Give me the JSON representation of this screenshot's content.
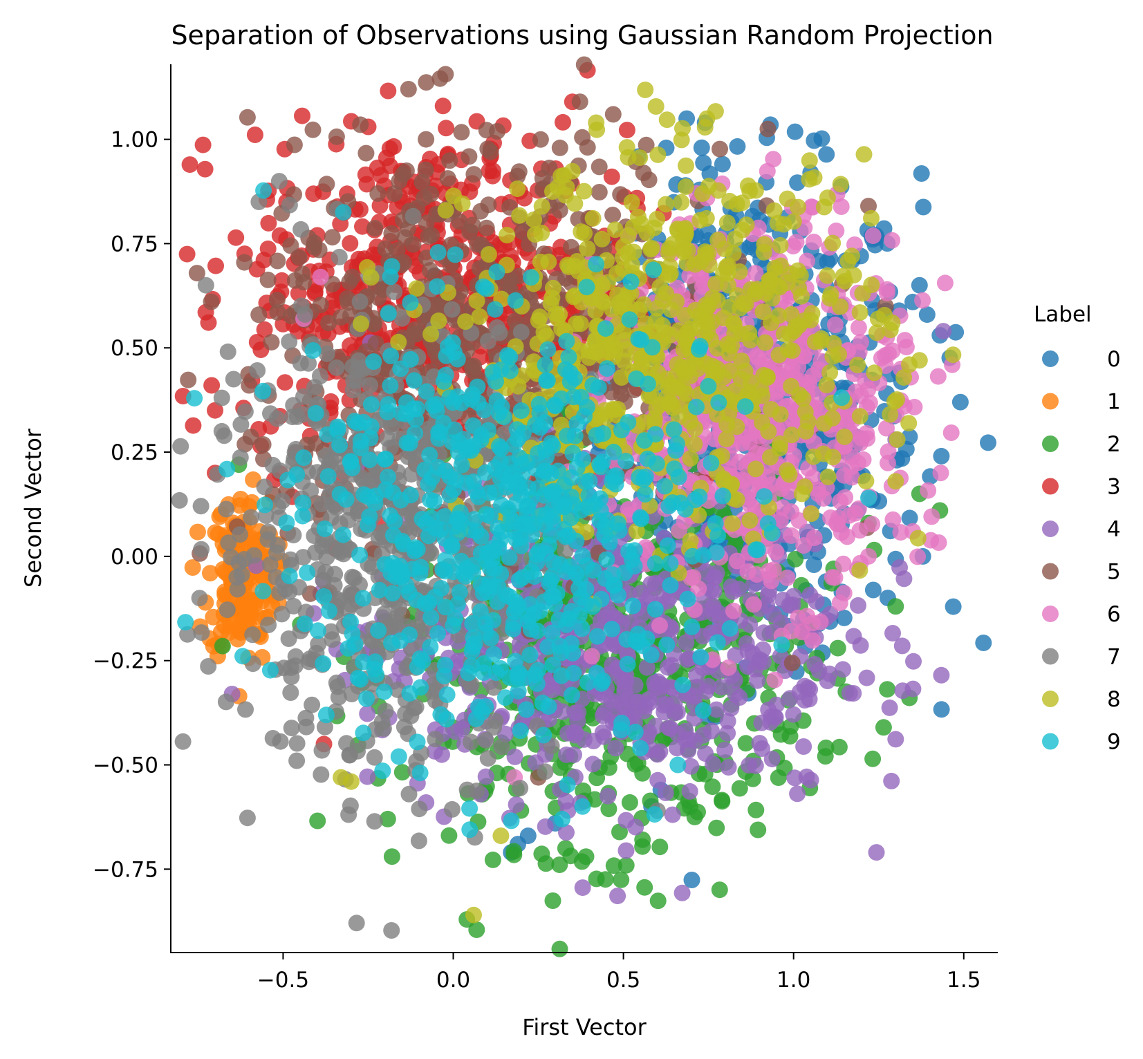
{
  "chart_data": {
    "type": "scatter",
    "title": "Separation of Observations using Gaussian Random Projection",
    "xlabel": "First Vector",
    "ylabel": "Second Vector",
    "xlim": [
      -0.83,
      1.6
    ],
    "ylim": [
      -0.95,
      1.18
    ],
    "x_ticks": [
      -0.5,
      0.0,
      0.5,
      1.0,
      1.5
    ],
    "x_tick_labels": [
      "−0.5",
      "0.0",
      "0.5",
      "1.0",
      "1.5"
    ],
    "y_ticks": [
      -0.75,
      -0.5,
      -0.25,
      0.0,
      0.25,
      0.5,
      0.75,
      1.0
    ],
    "y_tick_labels": [
      "−0.75",
      "−0.50",
      "−0.25",
      "0.00",
      "0.25",
      "0.50",
      "0.75",
      "1.00"
    ],
    "grid": false,
    "legend_title": "Label",
    "legend_position": "right",
    "series": [
      {
        "name": "0",
        "color": "#1f77b4",
        "center": [
          0.85,
          0.35
        ],
        "spread": [
          0.26,
          0.28
        ],
        "outliers": [
          [
            1.49,
            0.37
          ],
          [
            1.43,
            0.53
          ],
          [
            1.37,
            0.65
          ],
          [
            1.35,
            0.61
          ],
          [
            1.38,
            0.0
          ],
          [
            1.05,
            0.92
          ],
          [
            0.74,
            1.04
          ],
          [
            0.73,
            0.98
          ],
          [
            0.19,
            -0.69
          ],
          [
            0.22,
            -0.67
          ],
          [
            0.17,
            -0.71
          ],
          [
            0.3,
            -0.64
          ],
          [
            0.61,
            -0.56
          ],
          [
            0.9,
            -0.25
          ]
        ]
      },
      {
        "name": "1",
        "color": "#ff7f0e",
        "center": [
          -0.62,
          -0.05
        ],
        "spread": [
          0.05,
          0.1
        ],
        "outliers": [
          [
            -0.66,
            -0.15
          ],
          [
            -0.6,
            0.12
          ],
          [
            -0.67,
            0.05
          ]
        ]
      },
      {
        "name": "2",
        "color": "#2ca02c",
        "center": [
          0.45,
          -0.25
        ],
        "spread": [
          0.3,
          0.22
        ],
        "outliers": [
          [
            -0.18,
            -0.72
          ],
          [
            0.33,
            -0.7
          ],
          [
            0.39,
            -0.72
          ],
          [
            1.3,
            -0.12
          ],
          [
            1.43,
            0.11
          ],
          [
            1.37,
            0.15
          ],
          [
            1.22,
            0.08
          ],
          [
            -0.63,
            0.22
          ],
          [
            1.07,
            -0.28
          ],
          [
            1.13,
            -0.22
          ]
        ]
      },
      {
        "name": "3",
        "color": "#d62728",
        "center": [
          -0.05,
          0.62
        ],
        "spread": [
          0.28,
          0.2
        ],
        "outliers": [
          [
            -0.71,
            0.41
          ],
          [
            -0.7,
            0.35
          ],
          [
            -0.7,
            0.2
          ],
          [
            -0.03,
            1.08
          ],
          [
            0.35,
            1.09
          ],
          [
            -0.25,
            1.03
          ],
          [
            -0.49,
            0.85
          ],
          [
            -0.49,
            0.76
          ],
          [
            -0.38,
            -0.45
          ]
        ]
      },
      {
        "name": "4",
        "color": "#9467bd",
        "center": [
          0.45,
          -0.2
        ],
        "spread": [
          0.35,
          0.2
        ],
        "outliers": [
          [
            -0.65,
            -0.33
          ],
          [
            1.44,
            0.54
          ],
          [
            1.3,
            0.28
          ],
          [
            1.02,
            -0.24
          ],
          [
            0.08,
            -0.57
          ]
        ]
      },
      {
        "name": "5",
        "color": "#8c564b",
        "center": [
          0.1,
          0.5
        ],
        "spread": [
          0.35,
          0.25
        ],
        "outliers": [
          [
            0.47,
            1.06
          ],
          [
            -0.08,
            1.0
          ],
          [
            1.22,
            0.84
          ],
          [
            1.27,
            0.6
          ],
          [
            -0.6,
            0.41
          ],
          [
            0.25,
            -0.53
          ]
        ]
      },
      {
        "name": "6",
        "color": "#e377c2",
        "center": [
          0.9,
          0.35
        ],
        "spread": [
          0.22,
          0.22
        ],
        "outliers": [
          [
            1.35,
            0.06
          ],
          [
            1.22,
            0.0
          ],
          [
            -0.39,
            0.67
          ],
          [
            -0.44,
            0.57
          ],
          [
            1.26,
            0.53
          ],
          [
            0.18,
            -0.53
          ]
        ]
      },
      {
        "name": "7",
        "color": "#7f7f7f",
        "center": [
          -0.2,
          0.05
        ],
        "spread": [
          0.25,
          0.28
        ],
        "outliers": [
          [
            -0.68,
            0.38
          ],
          [
            -0.68,
            0.3
          ],
          [
            -0.46,
            -0.49
          ],
          [
            0.6,
            -0.61
          ],
          [
            -0.13,
            -0.57
          ]
        ]
      },
      {
        "name": "8",
        "color": "#bcbd22",
        "center": [
          0.65,
          0.5
        ],
        "spread": [
          0.3,
          0.22
        ],
        "outliers": [
          [
            0.06,
            -0.86
          ],
          [
            0.42,
            1.04
          ],
          [
            1.1,
            0.86
          ],
          [
            1.3,
            0.18
          ],
          [
            0.14,
            -0.67
          ],
          [
            -0.33,
            -0.53
          ],
          [
            -0.3,
            -0.54
          ],
          [
            1.37,
            0.47
          ],
          [
            1.34,
            0.46
          ],
          [
            1.29,
            0.56
          ]
        ]
      },
      {
        "name": "9",
        "color": "#17becf",
        "center": [
          0.15,
          0.08
        ],
        "spread": [
          0.3,
          0.25
        ],
        "outliers": [
          [
            0.32,
            -0.63
          ],
          [
            0.38,
            -0.6
          ],
          [
            -0.16,
            -0.48
          ],
          [
            1.22,
            0.14
          ],
          [
            0.66,
            -0.5
          ],
          [
            0.55,
            -0.46
          ]
        ]
      }
    ]
  }
}
